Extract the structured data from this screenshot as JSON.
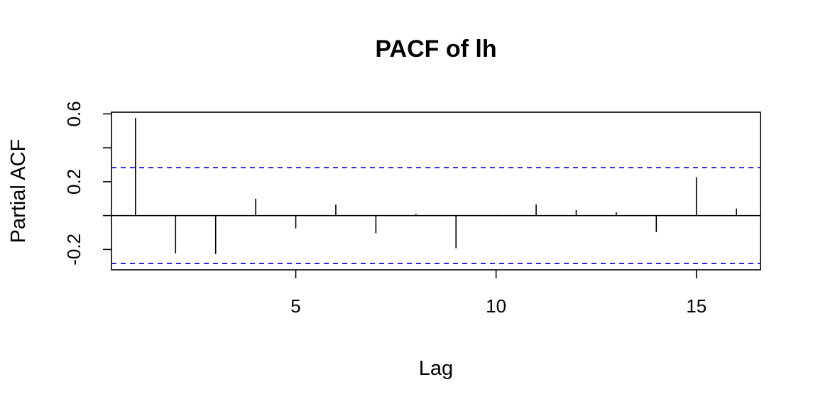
{
  "chart_data": {
    "type": "bar",
    "title": "PACF of lh",
    "xlabel": "Lag",
    "ylabel": "Partial ACF",
    "xlim": [
      0.4,
      16.6
    ],
    "ylim": [
      -0.32,
      0.61
    ],
    "x_ticks": [
      {
        "value": 5,
        "label": "5"
      },
      {
        "value": 10,
        "label": "10"
      },
      {
        "value": 15,
        "label": "15"
      }
    ],
    "y_ticks": [
      {
        "value": -0.2,
        "label": "-0.2",
        "labeled": true
      },
      {
        "value": 0.0,
        "label": "",
        "labeled": false
      },
      {
        "value": 0.2,
        "label": "0.2",
        "labeled": true
      },
      {
        "value": 0.4,
        "label": "",
        "labeled": false
      },
      {
        "value": 0.6,
        "label": "0.6",
        "labeled": true
      }
    ],
    "lags": [
      1,
      2,
      3,
      4,
      5,
      6,
      7,
      8,
      9,
      10,
      11,
      12,
      13,
      14,
      15,
      16
    ],
    "values": [
      0.576,
      -0.223,
      -0.227,
      0.1,
      -0.075,
      0.065,
      -0.104,
      0.01,
      -0.193,
      0.005,
      0.066,
      0.032,
      0.02,
      -0.097,
      0.226,
      0.042
    ],
    "confidence_bounds": [
      0.283,
      -0.283
    ],
    "bound_color": "#0000cc",
    "bar_color": "#000000",
    "grid": false,
    "legend": "none"
  }
}
